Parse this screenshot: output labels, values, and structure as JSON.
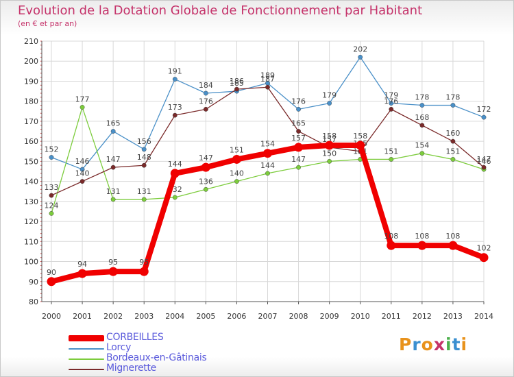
{
  "title": "Evolution de la Dotation Globale de Fonctionnement par Habitant",
  "subtitle": "(en € et par an)",
  "logo_text": "Proxiti",
  "logo_colors": [
    "#e8921c",
    "#3a8fd0",
    "#e8921c",
    "#c5326a",
    "#4db04d",
    "#3a8fd0",
    "#e8921c"
  ],
  "chart_data": {
    "type": "line",
    "title": "Evolution de la Dotation Globale de Fonctionnement par Habitant",
    "subtitle": "(en € et par an)",
    "x": [
      "2000",
      "2001",
      "2002",
      "2003",
      "2004",
      "2005",
      "2006",
      "2007",
      "2008",
      "2009",
      "2010",
      "2011",
      "2012",
      "2013",
      "2014"
    ],
    "ylim": [
      80,
      210
    ],
    "yticks": [
      80,
      90,
      100,
      110,
      120,
      130,
      140,
      150,
      160,
      170,
      180,
      190,
      200,
      210
    ],
    "grid": true,
    "legend_position": "bottom-left",
    "series": [
      {
        "name": "Lorcy",
        "color": "#4a90c8",
        "values": [
          152,
          146,
          165,
          156,
          191,
          184,
          185,
          189,
          176,
          179,
          202,
          179,
          178,
          178,
          172
        ]
      },
      {
        "name": "Bordeaux-en-Gâtinais",
        "color": "#7ccc3c",
        "values": [
          124,
          177,
          131,
          131,
          132,
          136,
          140,
          144,
          147,
          150,
          151,
          151,
          154,
          151,
          146
        ]
      },
      {
        "name": "Mignerette",
        "color": "#7a2a2a",
        "values": [
          133,
          140,
          147,
          148,
          173,
          176,
          186,
          187,
          165,
          157,
          155,
          176,
          168,
          160,
          147
        ]
      },
      {
        "name": "CORBEILLES",
        "color": "#f00000",
        "values": [
          90,
          94,
          95,
          95,
          144,
          147,
          151,
          154,
          157,
          158,
          158,
          108,
          108,
          108,
          102
        ]
      }
    ],
    "legend": [
      "CORBEILLES",
      "Lorcy",
      "Bordeaux-en-Gâtinais",
      "Mignerette"
    ]
  }
}
